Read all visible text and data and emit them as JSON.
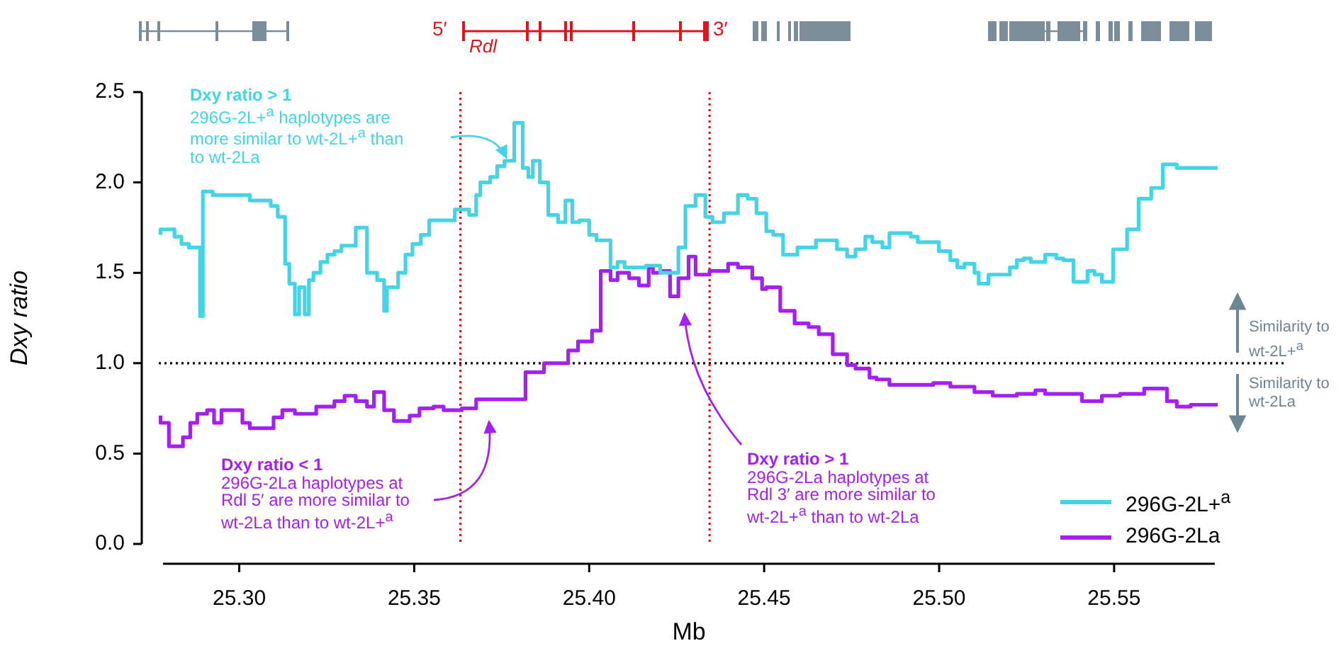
{
  "chart_data": {
    "type": "step",
    "xlabel": "Mb",
    "ylabel": "Dxy ratio",
    "xlim": [
      25.277,
      25.58
    ],
    "xticks": [
      {
        "value": 25.3,
        "label": "25.30"
      },
      {
        "value": 25.35,
        "label": "25.35"
      },
      {
        "value": 25.4,
        "label": "25.40"
      },
      {
        "value": 25.45,
        "label": "25.45"
      },
      {
        "value": 25.5,
        "label": "25.50"
      },
      {
        "value": 25.55,
        "label": "25.55"
      }
    ],
    "ylim": [
      0,
      2.5
    ],
    "yticks": [
      {
        "value": 0,
        "label": "0.0"
      },
      {
        "value": 0.5,
        "label": "0.5"
      },
      {
        "value": 1,
        "label": "1.0"
      },
      {
        "value": 1.5,
        "label": "1.5"
      },
      {
        "value": 2,
        "label": "2.0"
      },
      {
        "value": 2.5,
        "label": "2.5"
      }
    ],
    "legend": "bottom right",
    "series": [
      {
        "name": "296G-2L+$^{a}$",
        "color": "#45d3e6",
        "x": [
          25.2775,
          25.2815,
          25.2835,
          25.2856,
          25.2888,
          25.2896,
          25.2924,
          25.303,
          25.309,
          25.311,
          25.3131,
          25.3143,
          25.3159,
          25.3171,
          25.3187,
          25.3199,
          25.3212,
          25.3232,
          25.3252,
          25.3272,
          25.3292,
          25.3333,
          25.3365,
          25.3394,
          25.3414,
          25.3422,
          25.3454,
          25.3475,
          25.3495,
          25.3519,
          25.3543,
          25.3616,
          25.3657,
          25.3677,
          25.3689,
          25.3717,
          25.3737,
          25.3758,
          25.3786,
          25.381,
          25.3826,
          25.3839,
          25.3859,
          25.3883,
          25.3911,
          25.3932,
          25.3952,
          25.3972,
          25.4,
          25.4021,
          25.4061,
          25.4081,
          25.4101,
          25.4162,
          25.4203,
          25.4255,
          25.4275,
          25.4304,
          25.4332,
          25.4352,
          25.4385,
          25.4425,
          25.4453,
          25.4478,
          25.4506,
          25.4526,
          25.4554,
          25.4595,
          25.4648,
          25.4708,
          25.4737,
          25.4761,
          25.4789,
          25.4809,
          25.4838,
          25.4858,
          25.4919,
          25.4939,
          25.4999,
          25.5032,
          25.5052,
          25.5072,
          25.5101,
          25.5113,
          25.5141,
          25.5202,
          25.5222,
          25.5242,
          25.5262,
          25.5303,
          25.5335,
          25.5355,
          25.5384,
          25.5424,
          25.5444,
          25.5465,
          25.5497,
          25.5537,
          25.557,
          25.5606,
          25.5639,
          25.5679,
          25.574,
          25.5796
        ],
        "values": [
          1.71,
          1.74,
          1.7,
          1.66,
          1.64,
          1.26,
          1.95,
          1.93,
          1.9,
          1.87,
          1.81,
          1.55,
          1.44,
          1.27,
          1.42,
          1.27,
          1.46,
          1.5,
          1.56,
          1.6,
          1.62,
          1.65,
          1.75,
          1.5,
          1.46,
          1.29,
          1.42,
          1.5,
          1.6,
          1.66,
          1.71,
          1.79,
          1.85,
          1.82,
          1.93,
          2.0,
          2.03,
          2.09,
          2.12,
          2.33,
          2.08,
          2.03,
          2.12,
          2.0,
          1.82,
          1.78,
          1.9,
          1.78,
          1.79,
          1.71,
          1.68,
          1.53,
          1.56,
          1.53,
          1.54,
          1.5,
          1.64,
          1.87,
          1.93,
          1.81,
          1.78,
          1.83,
          1.93,
          1.91,
          1.83,
          1.73,
          1.71,
          1.6,
          1.64,
          1.68,
          1.63,
          1.59,
          1.63,
          1.7,
          1.67,
          1.64,
          1.72,
          1.7,
          1.67,
          1.62,
          1.57,
          1.53,
          1.55,
          1.5,
          1.44,
          1.49,
          1.53,
          1.57,
          1.58,
          1.56,
          1.6,
          1.58,
          1.57,
          1.45,
          1.51,
          1.49,
          1.45,
          1.63,
          1.74,
          1.91,
          1.97,
          2.1,
          2.08,
          2.08
        ]
      },
      {
        "name": "296G-2La",
        "color": "#a41ff2",
        "x": [
          25.2775,
          25.2799,
          25.2839,
          25.286,
          25.288,
          25.2908,
          25.2928,
          25.2949,
          25.3009,
          25.303,
          25.3098,
          25.3123,
          25.3159,
          25.322,
          25.3272,
          25.3301,
          25.3333,
          25.3365,
          25.3385,
          25.3414,
          25.3442,
          25.3487,
          25.3515,
          25.3555,
          25.3584,
          25.3636,
          25.3677,
          25.3818,
          25.3871,
          25.394,
          25.3968,
          25.4008,
          25.4033,
          25.4061,
          25.4081,
          25.4114,
          25.4142,
          25.417,
          25.4182,
          25.4203,
          25.4231,
          25.4255,
          25.4284,
          25.4304,
          25.4344,
          25.4397,
          25.4425,
          25.4466,
          25.4494,
          25.4506,
          25.4546,
          25.4587,
          25.4627,
          25.4656,
          25.4696,
          25.4737,
          25.4761,
          25.4801,
          25.4821,
          25.4858,
          25.4983,
          25.5032,
          25.5101,
          25.5153,
          25.5222,
          25.5275,
          25.5303,
          25.5408,
          25.5465,
          25.5517,
          25.5586,
          25.5651,
          25.5679,
          25.5719,
          25.576,
          25.5796
        ],
        "values": [
          0.71,
          0.67,
          0.54,
          0.59,
          0.67,
          0.72,
          0.74,
          0.67,
          0.74,
          0.67,
          0.64,
          0.7,
          0.74,
          0.72,
          0.76,
          0.79,
          0.82,
          0.79,
          0.76,
          0.84,
          0.74,
          0.68,
          0.71,
          0.75,
          0.76,
          0.74,
          0.75,
          0.8,
          0.95,
          1.0,
          1.07,
          1.12,
          1.18,
          1.51,
          1.46,
          1.5,
          1.47,
          1.43,
          1.53,
          1.5,
          1.51,
          1.37,
          1.47,
          1.59,
          1.49,
          1.51,
          1.55,
          1.53,
          1.47,
          1.41,
          1.42,
          1.29,
          1.22,
          1.2,
          1.16,
          1.05,
          0.99,
          0.97,
          0.92,
          0.91,
          0.88,
          0.89,
          0.87,
          0.84,
          0.82,
          0.83,
          0.85,
          0.83,
          0.79,
          0.82,
          0.83,
          0.86,
          0.79,
          0.76,
          0.77,
          0.77
        ]
      }
    ],
    "ref_lines": [
      {
        "axis": "y",
        "value": 1,
        "color": "#000000",
        "line_style": "dotted"
      },
      {
        "axis": "x",
        "value": 25.3632,
        "color": "#e0141e",
        "line_style": "dotted"
      },
      {
        "axis": "x",
        "value": 25.4344,
        "color": "#e0141e",
        "line_style": "dotted"
      }
    ],
    "annotations": [
      "Dxy ratio > 1\n296G-2L+$^{a}$ haplotypes are\nmore similar to wt-2L+$^{a}$ than\nto wt-2La",
      "Dxy ratio < 1\n296G-2La haplotypes at\nRdl 5′ are more similar to\nwt-2La than to wt-2L+$^{a}$",
      "Dxy ratio > 1\n296G-2La haplotypes at\nRdl 3′ are more similar to\nwt-2L+$^{a}$ than to wt-2La",
      "Similarity to\nwt-2L+$^{a}$",
      "Similarity to\nwt-2La",
      "5′",
      "Rdl",
      "3′"
    ]
  }
}
